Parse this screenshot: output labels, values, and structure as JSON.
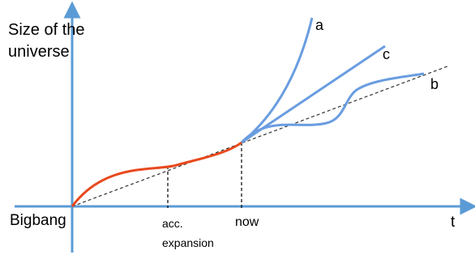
{
  "y_axis_label_line1": "Size of the",
  "y_axis_label_line2": "universe",
  "x_axis_label": "t",
  "origin_label": "Bigbang",
  "marker_acc_line1": "acc.",
  "marker_acc_line2": "expansion",
  "marker_now": "now",
  "curve_labels": {
    "a": "a",
    "b": "b",
    "c": "c"
  },
  "colors": {
    "axis": "#5b9bd5",
    "future_curves": "#6a9de0",
    "past_curve": "#e8491d",
    "reference_line": "#333333",
    "marker_lines": "#000000"
  }
}
